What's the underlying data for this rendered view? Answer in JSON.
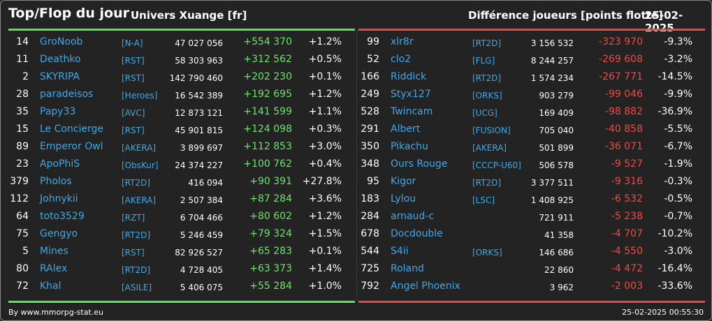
{
  "header": {
    "title": "Top/Flop du jour",
    "universe": "Univers Xuange [fr]",
    "metric": "Différence joueurs [points flotte]",
    "date": "25-02-2025"
  },
  "colors": {
    "positive": "#6ee36e",
    "negative": "#ef4b44",
    "link": "#3fa8e6",
    "top_bar": "#5be35b",
    "flop_bar": "#dd4a44"
  },
  "top": [
    {
      "rank": "14",
      "name": "GroNoob",
      "alliance": "[N-A]",
      "points": "47 027 056",
      "diff": "+554 370",
      "pct": "+1.2%"
    },
    {
      "rank": "11",
      "name": "Deathko",
      "alliance": "[RST]",
      "points": "58 303 963",
      "diff": "+312 562",
      "pct": "+0.5%"
    },
    {
      "rank": "2",
      "name": "SKYRIPA",
      "alliance": "[RST]",
      "points": "142 790 460",
      "diff": "+202 230",
      "pct": "+0.1%"
    },
    {
      "rank": "28",
      "name": "paradeisos",
      "alliance": "[Heroes]",
      "points": "16 542 389",
      "diff": "+192 695",
      "pct": "+1.2%"
    },
    {
      "rank": "35",
      "name": "Papy33",
      "alliance": "[AVC]",
      "points": "12 873 121",
      "diff": "+141 599",
      "pct": "+1.1%"
    },
    {
      "rank": "15",
      "name": "Le Concierge",
      "alliance": "[RST]",
      "points": "45 901 815",
      "diff": "+124 098",
      "pct": "+0.3%"
    },
    {
      "rank": "89",
      "name": "Emperor Owl",
      "alliance": "[AKERA]",
      "points": "3 899 697",
      "diff": "+112 853",
      "pct": "+3.0%"
    },
    {
      "rank": "23",
      "name": "ApoPhiS",
      "alliance": "[ObsKur]",
      "points": "24 374 227",
      "diff": "+100 762",
      "pct": "+0.4%"
    },
    {
      "rank": "379",
      "name": "Pholos",
      "alliance": "[RT2D]",
      "points": "416 094",
      "diff": "+90 391",
      "pct": "+27.8%"
    },
    {
      "rank": "112",
      "name": "Johnykii",
      "alliance": "[AKERA]",
      "points": "2 507 384",
      "diff": "+87 284",
      "pct": "+3.6%"
    },
    {
      "rank": "64",
      "name": "toto3529",
      "alliance": "[RZT]",
      "points": "6 704 466",
      "diff": "+80 602",
      "pct": "+1.2%"
    },
    {
      "rank": "75",
      "name": "Gengyo",
      "alliance": "[RT2D]",
      "points": "5 246 459",
      "diff": "+79 324",
      "pct": "+1.5%"
    },
    {
      "rank": "5",
      "name": "Mines",
      "alliance": "[RST]",
      "points": "82 926 527",
      "diff": "+65 283",
      "pct": "+0.1%"
    },
    {
      "rank": "80",
      "name": "RAlex",
      "alliance": "[RT2D]",
      "points": "4 728 405",
      "diff": "+63 373",
      "pct": "+1.4%"
    },
    {
      "rank": "72",
      "name": "Khal",
      "alliance": "[ASILE]",
      "points": "5 406 075",
      "diff": "+55 284",
      "pct": "+1.0%"
    }
  ],
  "flop": [
    {
      "rank": "99",
      "name": "xlr8r",
      "alliance": "[RT2D]",
      "points": "3 156 532",
      "diff": "-323 970",
      "pct": "-9.3%"
    },
    {
      "rank": "52",
      "name": "clo2",
      "alliance": "[FLG]",
      "points": "8 244 257",
      "diff": "-269 608",
      "pct": "-3.2%"
    },
    {
      "rank": "166",
      "name": "Riddick",
      "alliance": "[RT2D]",
      "points": "1 574 234",
      "diff": "-267 771",
      "pct": "-14.5%"
    },
    {
      "rank": "249",
      "name": "Styx127",
      "alliance": "[ORKS]",
      "points": "903 279",
      "diff": "-99 046",
      "pct": "-9.9%"
    },
    {
      "rank": "528",
      "name": "Twincam",
      "alliance": "[UCG]",
      "points": "169 409",
      "diff": "-98 882",
      "pct": "-36.9%"
    },
    {
      "rank": "291",
      "name": "Albert",
      "alliance": "[FUSION]",
      "points": "705 040",
      "diff": "-40 858",
      "pct": "-5.5%"
    },
    {
      "rank": "350",
      "name": "Pikachu",
      "alliance": "[AKERA]",
      "points": "501 899",
      "diff": "-36 071",
      "pct": "-6.7%"
    },
    {
      "rank": "348",
      "name": "Ours Rouge",
      "alliance": "[CCCP-U60]",
      "points": "506 578",
      "diff": "-9 527",
      "pct": "-1.9%"
    },
    {
      "rank": "95",
      "name": "Kigor",
      "alliance": "[RT2D]",
      "points": "3 377 511",
      "diff": "-9 316",
      "pct": "-0.3%"
    },
    {
      "rank": "183",
      "name": "Lylou",
      "alliance": "[LSC]",
      "points": "1 408 925",
      "diff": "-6 532",
      "pct": "-0.5%"
    },
    {
      "rank": "284",
      "name": "arnaud-c",
      "alliance": "",
      "points": "721 911",
      "diff": "-5 238",
      "pct": "-0.7%"
    },
    {
      "rank": "678",
      "name": "Docdouble",
      "alliance": "",
      "points": "41 358",
      "diff": "-4 707",
      "pct": "-10.2%"
    },
    {
      "rank": "544",
      "name": "S4ii",
      "alliance": "[ORKS]",
      "points": "146 686",
      "diff": "-4 550",
      "pct": "-3.0%"
    },
    {
      "rank": "725",
      "name": "Roland",
      "alliance": "",
      "points": "22 860",
      "diff": "-4 472",
      "pct": "-16.4%"
    },
    {
      "rank": "792",
      "name": "Angel Phoenix",
      "alliance": "",
      "points": "3 962",
      "diff": "-2 003",
      "pct": "-33.6%"
    }
  ],
  "footer": {
    "credit": "By www.mmorpg-stat.eu",
    "timestamp": "25-02-2025 00:55:30"
  }
}
